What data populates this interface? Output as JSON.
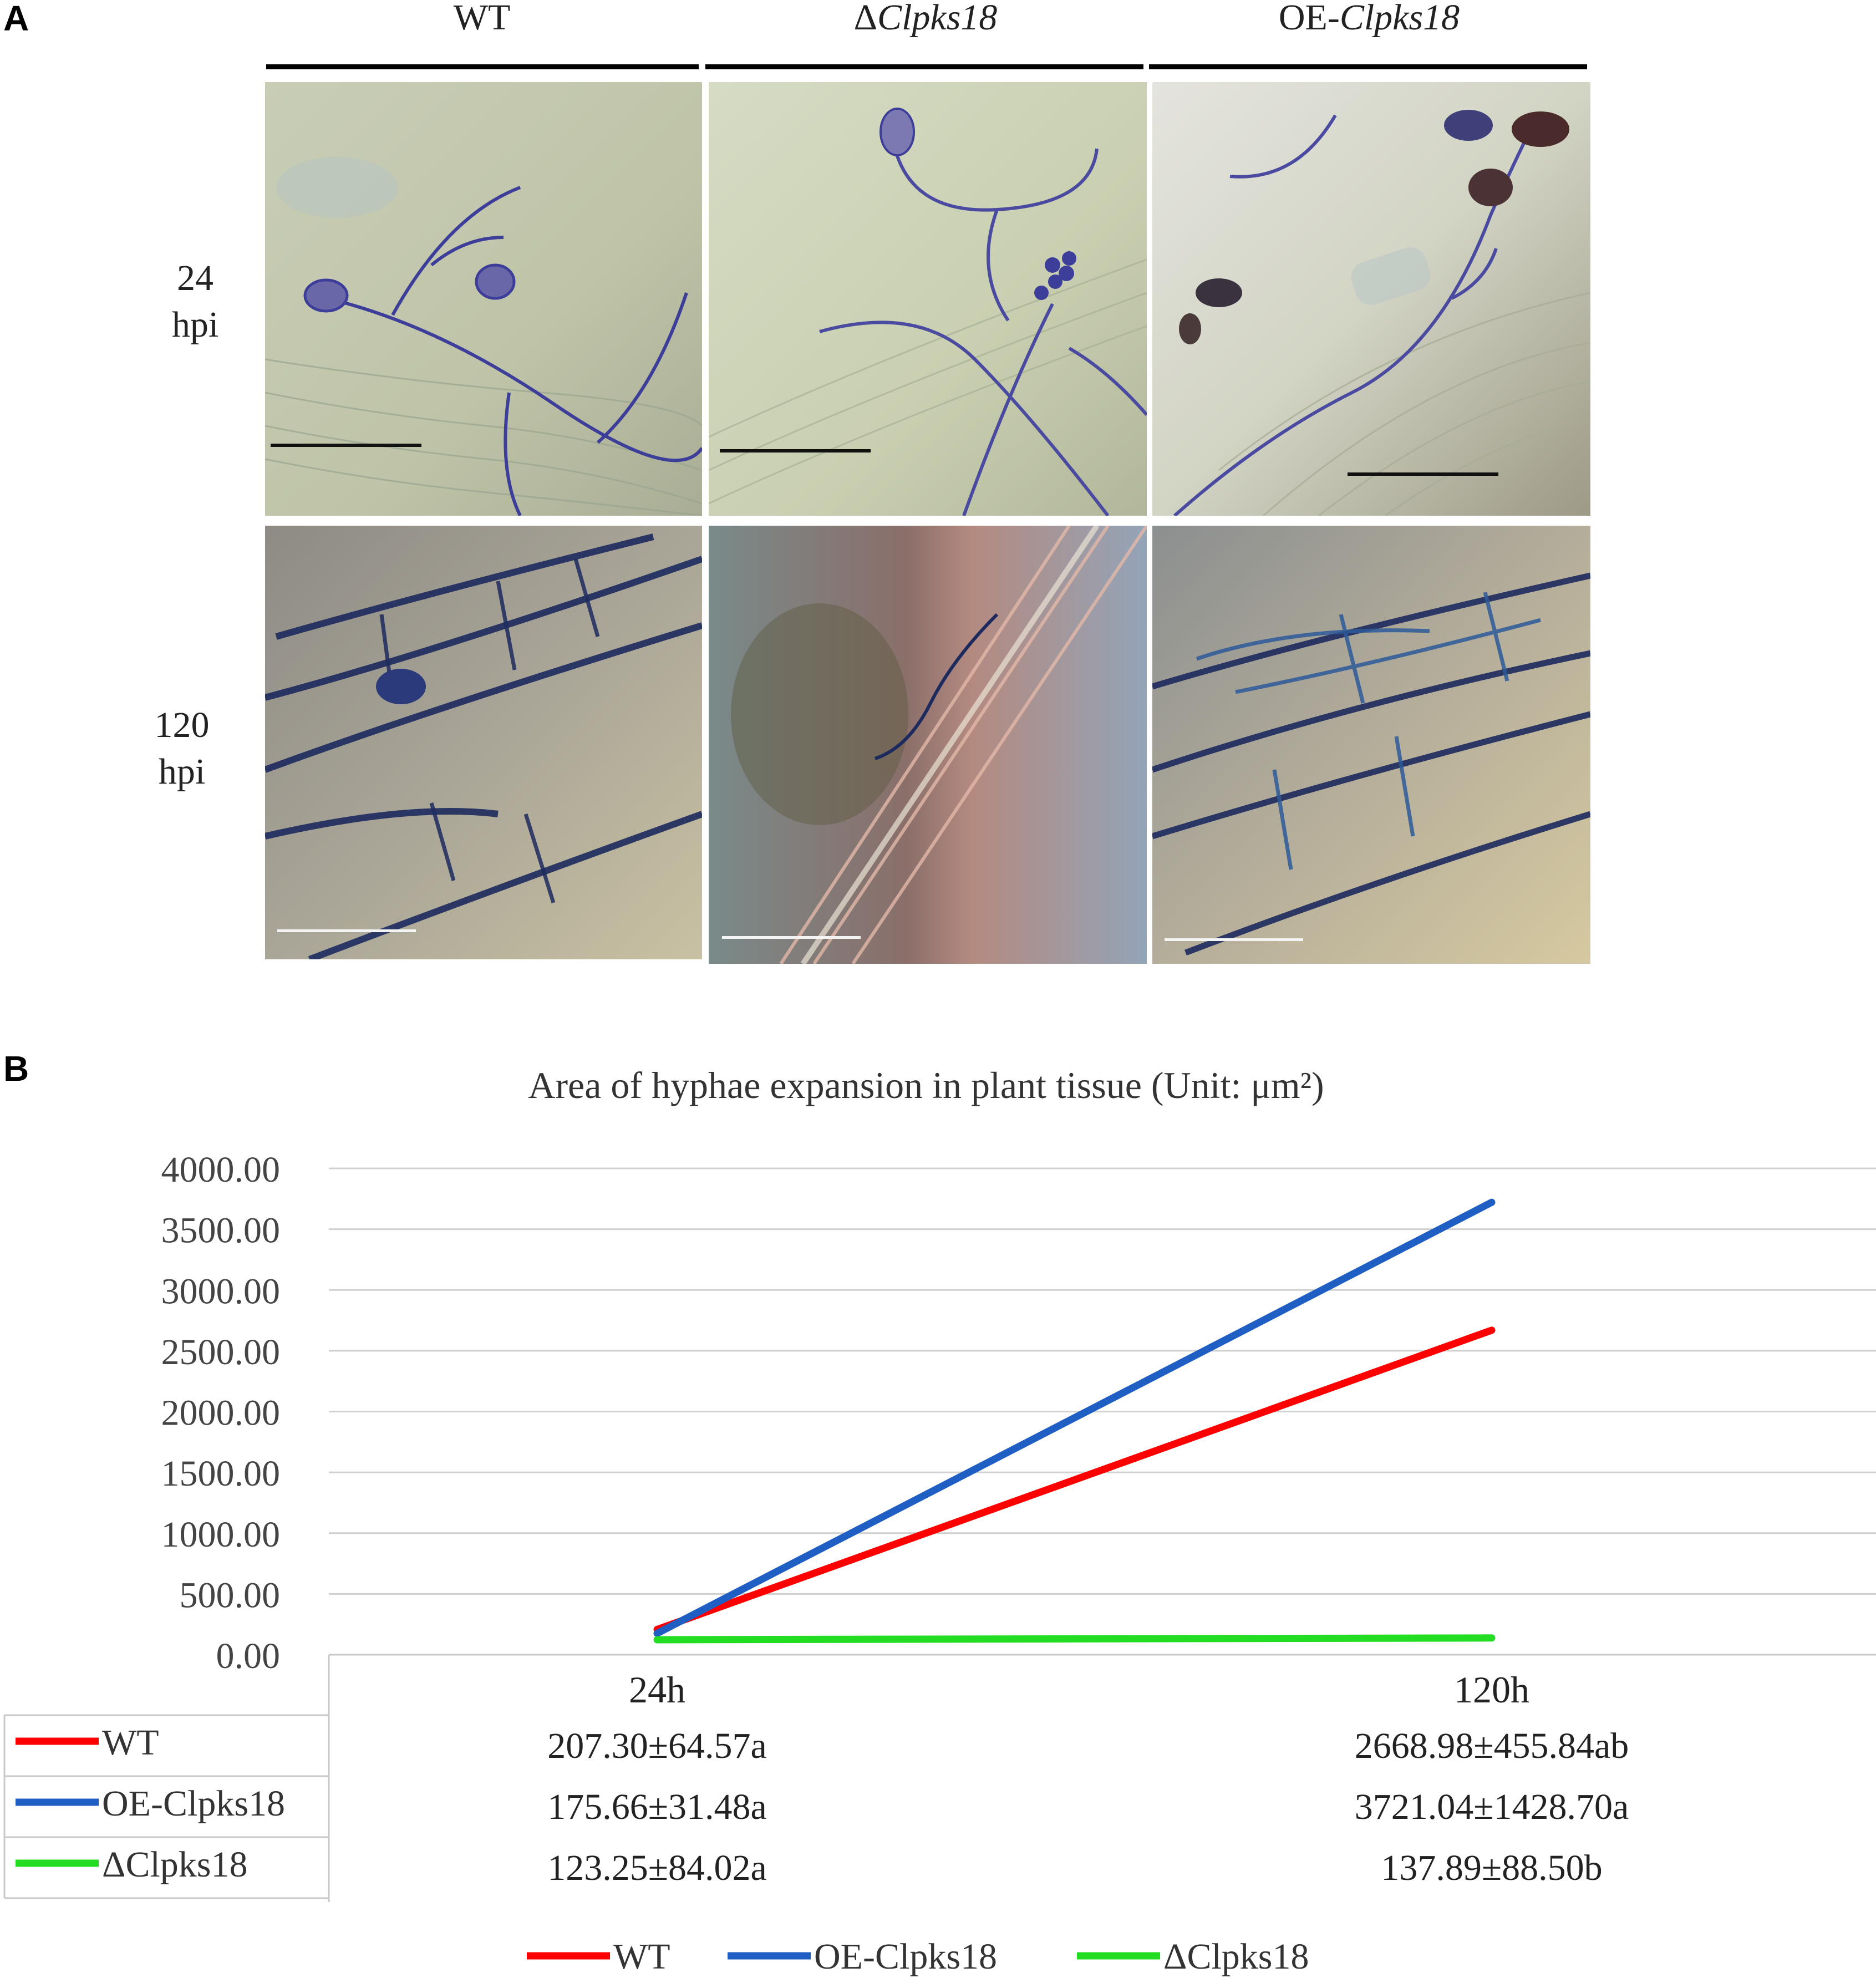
{
  "panel_a": {
    "letter": "A",
    "columns": [
      {
        "label_prefix": "",
        "label_italic": "",
        "label_plain": "WT"
      },
      {
        "label_prefix": "Δ",
        "label_italic": "Clpks18",
        "label_plain": ""
      },
      {
        "label_prefix": "OE-",
        "label_italic": "Clpks18",
        "label_plain": ""
      }
    ],
    "rows": [
      {
        "line1": "24",
        "line2": "hpi"
      },
      {
        "line1": "120",
        "line2": "hpi"
      }
    ],
    "colors": {
      "tissue_light": "#c9cdb8",
      "tissue_dark": "#8e8b85",
      "hyphae_stain": "#3d3e9a",
      "hyphae_dark": "#1d2a5e"
    }
  },
  "panel_b": {
    "letter": "B",
    "table_rows": [
      {
        "name": "WT",
        "color": "#ff0000",
        "values": [
          "207.30±64.57a",
          "2668.98±455.84ab"
        ]
      },
      {
        "name": "OE-Clpks18",
        "color": "#1f5fc4",
        "values": [
          "175.66±31.48a",
          "3721.04±1428.70a"
        ]
      },
      {
        "name": "ΔClpks18",
        "color": "#22dd22",
        "values": [
          "123.25±84.02a",
          "137.89±88.50b"
        ]
      }
    ]
  },
  "chart_data": {
    "type": "line",
    "title": "Area of hyphae expansion in plant tissue (Unit:  μm²)",
    "xlabel": "",
    "ylabel": "",
    "categories": [
      "24h",
      "120h"
    ],
    "ylim": [
      0,
      4000
    ],
    "yticks": [
      "0.00",
      "500.00",
      "1000.00",
      "1500.00",
      "2000.00",
      "2500.00",
      "3000.00",
      "3500.00",
      "4000.00"
    ],
    "grid": true,
    "legend_placement": "bottom",
    "series": [
      {
        "name": "WT",
        "color": "#ff0000",
        "values": [
          207.3,
          2668.98
        ]
      },
      {
        "name": "OE-Clpks18",
        "color": "#1f5fc4",
        "values": [
          175.66,
          3721.04
        ]
      },
      {
        "name": "ΔClpks18",
        "color": "#22dd22",
        "values": [
          123.25,
          137.89
        ]
      }
    ]
  }
}
